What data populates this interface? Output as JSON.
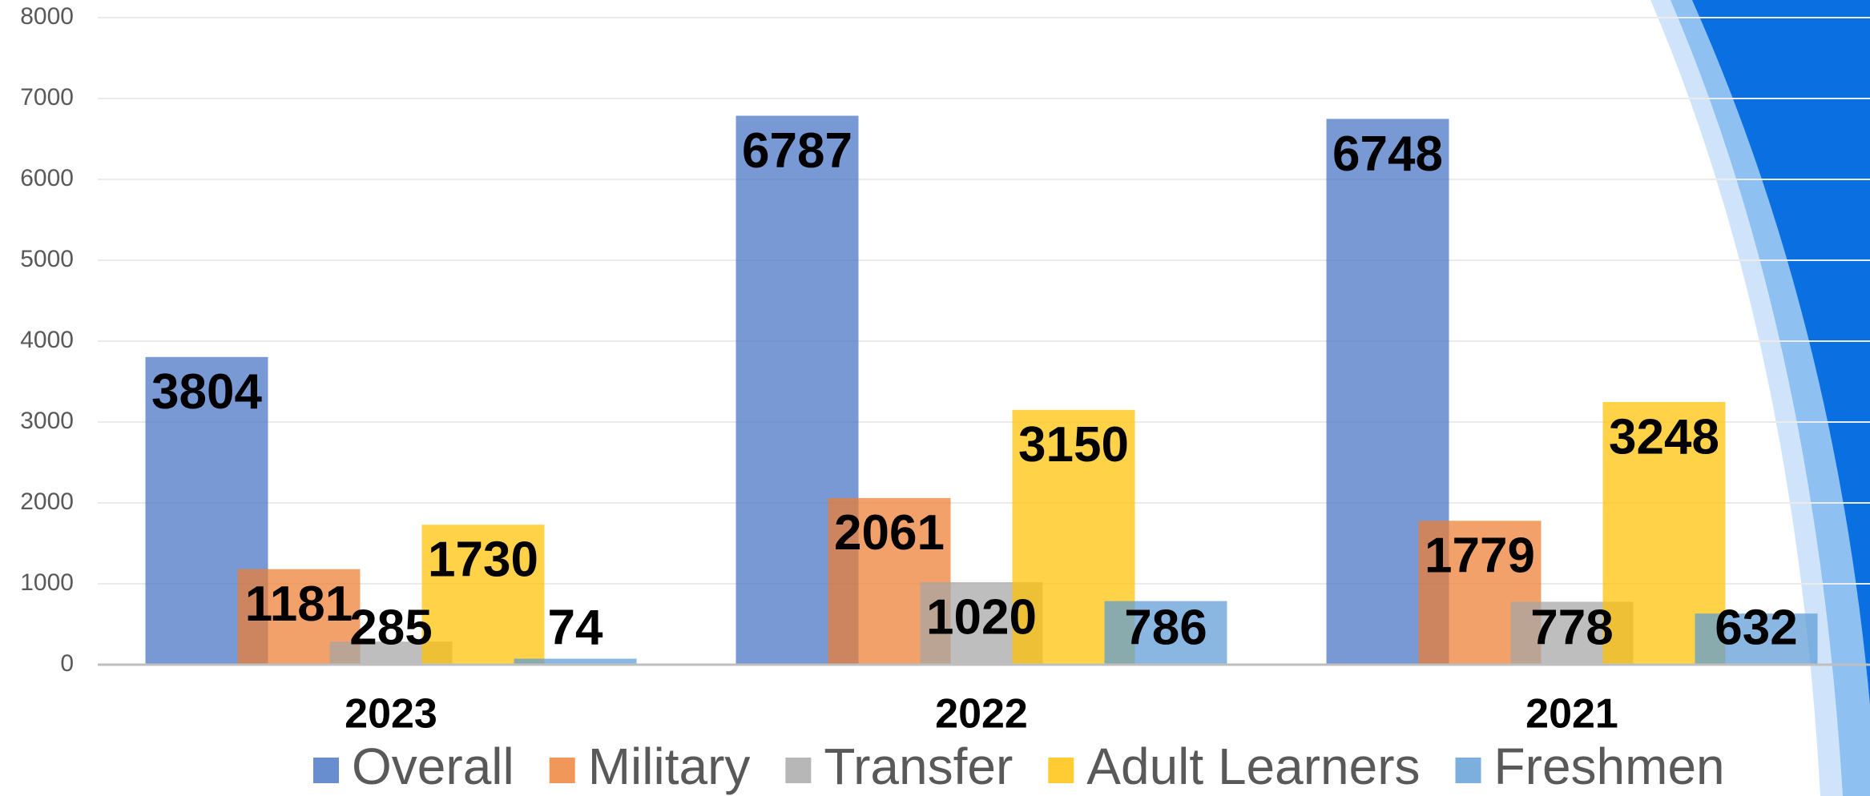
{
  "chart_data": {
    "type": "bar",
    "categories": [
      "2023",
      "2022",
      "2021"
    ],
    "series": [
      {
        "name": "Overall",
        "color": "#4472c4",
        "values": [
          3804,
          6787,
          6748
        ]
      },
      {
        "name": "Military",
        "color": "#ed7d31",
        "values": [
          1181,
          2061,
          1779
        ]
      },
      {
        "name": "Transfer",
        "color": "#a5a5a5",
        "values": [
          285,
          1020,
          778
        ]
      },
      {
        "name": "Adult Learners",
        "color": "#ffc000",
        "values": [
          1730,
          3150,
          3248
        ]
      },
      {
        "name": "Freshmen",
        "color": "#5b9bd5",
        "values": [
          74,
          786,
          632
        ]
      }
    ],
    "ylim": [
      0,
      8000
    ],
    "yticks": [
      0,
      1000,
      2000,
      3000,
      4000,
      5000,
      6000,
      7000,
      8000
    ],
    "grid": true,
    "legend": "bottom"
  }
}
